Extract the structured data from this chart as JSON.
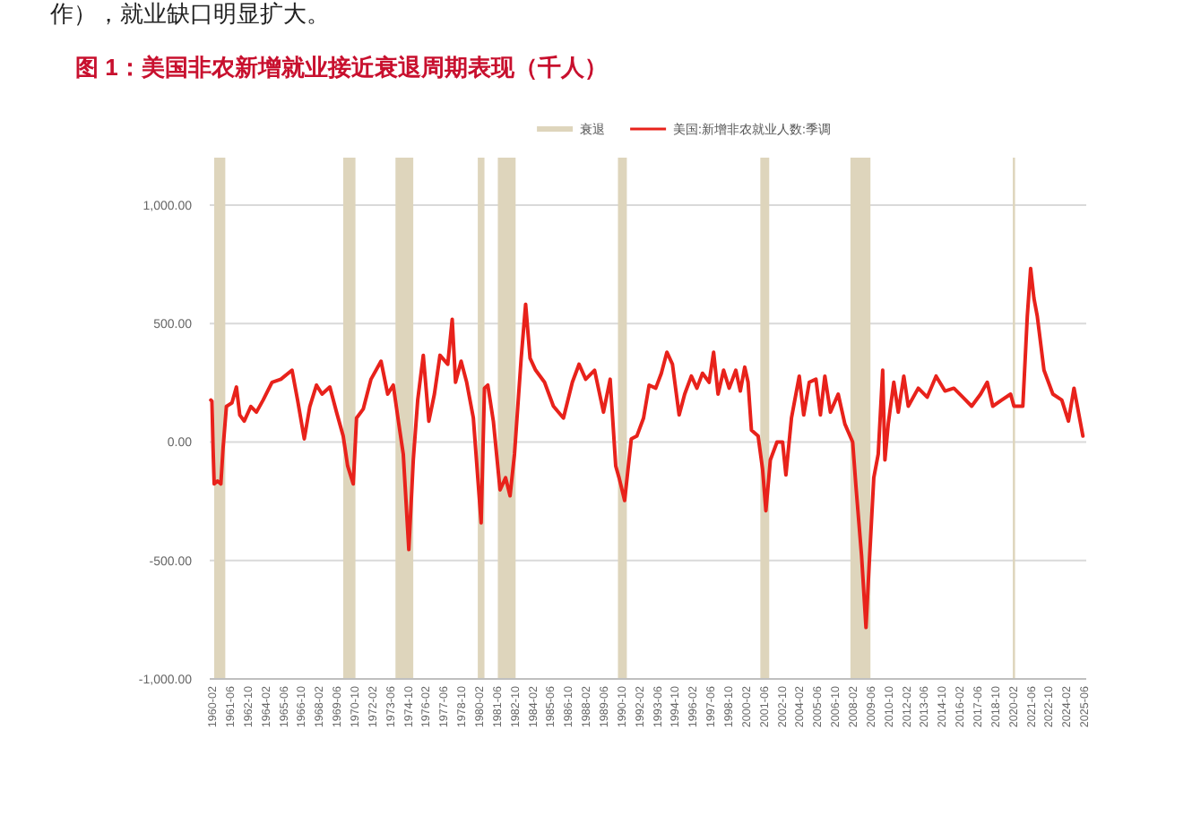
{
  "chart_data": {
    "type": "line",
    "title": "图 1：美国非农新增就业接近衰退周期表现（千人）",
    "annotations": [
      "作），就业缺口明显扩大。"
    ],
    "legend": "top",
    "grid": "y",
    "xlim": [
      "1959-12",
      "2025-08"
    ],
    "xticks": [
      "1960-02",
      "1961-06",
      "1962-10",
      "1964-02",
      "1965-06",
      "1966-10",
      "1968-02",
      "1969-06",
      "1970-10",
      "1972-02",
      "1973-06",
      "1974-10",
      "1976-02",
      "1977-06",
      "1978-10",
      "1980-02",
      "1981-06",
      "1982-10",
      "1984-02",
      "1985-06",
      "1986-10",
      "1988-02",
      "1989-06",
      "1990-10",
      "1992-02",
      "1993-06",
      "1994-10",
      "1996-02",
      "1997-06",
      "1998-10",
      "2000-02",
      "2001-06",
      "2002-10",
      "2004-02",
      "2005-06",
      "2006-10",
      "2008-02",
      "2009-06",
      "2010-10",
      "2012-02",
      "2013-06",
      "2014-10",
      "2016-02",
      "2017-06",
      "2018-10",
      "2020-02",
      "2021-06",
      "2022-10",
      "2024-02",
      "2025-06"
    ],
    "ylim": [
      -1000,
      1200
    ],
    "yticks": [
      {
        "value": -1000,
        "label": "-1,000.00"
      },
      {
        "value": -500,
        "label": "-500.00"
      },
      {
        "value": 0,
        "label": "0.00"
      },
      {
        "value": 500,
        "label": "500.00"
      },
      {
        "value": 1000,
        "label": "1,000.00"
      }
    ],
    "bands": [
      {
        "axis": "x",
        "from": "1960-04",
        "to": "1961-02",
        "label": "衰退",
        "color": "#ded5bc"
      },
      {
        "axis": "x",
        "from": "1969-12",
        "to": "1970-11",
        "color": "#ded5bc"
      },
      {
        "axis": "x",
        "from": "1973-11",
        "to": "1975-03",
        "color": "#ded5bc"
      },
      {
        "axis": "x",
        "from": "1980-01",
        "to": "1980-07",
        "color": "#ded5bc"
      },
      {
        "axis": "x",
        "from": "1981-07",
        "to": "1982-11",
        "color": "#ded5bc"
      },
      {
        "axis": "x",
        "from": "1990-07",
        "to": "1991-03",
        "color": "#ded5bc"
      },
      {
        "axis": "x",
        "from": "2001-03",
        "to": "2001-11",
        "color": "#ded5bc"
      },
      {
        "axis": "x",
        "from": "2007-12",
        "to": "2009-06",
        "color": "#ded5bc"
      },
      {
        "axis": "x",
        "from": "2020-02",
        "to": "2020-04",
        "color": "#ded5bc"
      }
    ],
    "series": [
      {
        "name": "美国:新增非农就业人数:季调",
        "color": "#e8221b",
        "x": [
          "1960-01",
          "1960-02",
          "1960-03",
          "1960-04",
          "1960-07",
          "1960-10",
          "1960-12",
          "1961-03",
          "1961-08",
          "1961-12",
          "1962-03",
          "1962-07",
          "1963-01",
          "1963-06",
          "1963-12",
          "1964-08",
          "1965-04",
          "1966-02",
          "1966-07",
          "1967-01",
          "1967-06",
          "1967-12",
          "1968-05",
          "1968-12",
          "1969-06",
          "1969-12",
          "1970-04",
          "1970-09",
          "1970-12",
          "1971-06",
          "1972-01",
          "1972-10",
          "1973-04",
          "1973-09",
          "1974-02",
          "1974-06",
          "1974-11",
          "1975-03",
          "1975-07",
          "1975-12",
          "1976-05",
          "1976-10",
          "1977-03",
          "1977-10",
          "1978-02",
          "1978-05",
          "1978-10",
          "1979-03",
          "1979-09",
          "1980-04",
          "1980-07",
          "1980-10",
          "1981-03",
          "1981-09",
          "1982-02",
          "1982-06",
          "1982-10",
          "1983-04",
          "1983-08",
          "1983-12",
          "1984-05",
          "1985-01",
          "1985-09",
          "1986-06",
          "1987-02",
          "1987-08",
          "1988-02",
          "1988-10",
          "1989-06",
          "1989-12",
          "1990-05",
          "1990-08",
          "1991-01",
          "1991-07",
          "1991-12",
          "1992-06",
          "1992-11",
          "1993-05",
          "1993-10",
          "1994-03",
          "1994-08",
          "1995-02",
          "1995-07",
          "1996-01",
          "1996-06",
          "1996-11",
          "1997-05",
          "1997-09",
          "1998-01",
          "1998-06",
          "1998-11",
          "1999-05",
          "1999-09",
          "2000-01",
          "2000-04",
          "2000-07",
          "2001-01",
          "2001-05",
          "2001-08",
          "2001-12",
          "2002-06",
          "2002-11",
          "2003-02",
          "2003-07",
          "2004-02",
          "2004-06",
          "2004-11",
          "2005-05",
          "2005-09",
          "2006-01",
          "2006-06",
          "2007-01",
          "2007-07",
          "2008-02",
          "2008-05",
          "2008-10",
          "2009-02",
          "2009-05",
          "2009-09",
          "2010-01",
          "2010-05",
          "2010-07",
          "2010-10",
          "2011-03",
          "2011-07",
          "2011-12",
          "2012-04",
          "2013-01",
          "2013-09",
          "2014-05",
          "2015-01",
          "2015-09",
          "2016-05",
          "2017-01",
          "2017-09",
          "2018-03",
          "2018-08",
          "2019-04",
          "2019-12",
          "2020-03",
          "2020-11",
          "2021-03",
          "2021-06",
          "2021-09",
          "2021-12",
          "2022-06",
          "2023-02",
          "2023-10",
          "2024-04",
          "2024-09",
          "2025-05"
        ],
        "values": [
          177,
          172,
          -25,
          -177,
          -165,
          -177,
          -25,
          150,
          165,
          232,
          114,
          88,
          150,
          126,
          177,
          252,
          265,
          303,
          177,
          13,
          150,
          240,
          202,
          232,
          126,
          25,
          -101,
          -177,
          101,
          139,
          265,
          341,
          202,
          240,
          76,
          -51,
          -454,
          -76,
          177,
          366,
          88,
          202,
          366,
          328,
          518,
          252,
          341,
          252,
          101,
          -341,
          227,
          240,
          88,
          -202,
          -151,
          -227,
          -51,
          354,
          581,
          354,
          303,
          252,
          151,
          101,
          252,
          328,
          265,
          303,
          126,
          265,
          -101,
          -151,
          -247,
          13,
          25,
          101,
          240,
          227,
          290,
          379,
          328,
          114,
          202,
          278,
          227,
          290,
          252,
          379,
          202,
          303,
          227,
          303,
          215,
          316,
          252,
          50,
          25,
          -114,
          -290,
          -76,
          0,
          0,
          -139,
          101,
          278,
          114,
          252,
          265,
          114,
          278,
          126,
          202,
          76,
          0,
          -189,
          -480,
          -783,
          -505,
          -151,
          -51,
          303,
          -76,
          76,
          252,
          126,
          278,
          151,
          227,
          189,
          278,
          215,
          227,
          189,
          151,
          202,
          252,
          151,
          177,
          202,
          151,
          151,
          530,
          732,
          606,
          530,
          303,
          202,
          177,
          88,
          227,
          25
        ]
      }
    ]
  }
}
